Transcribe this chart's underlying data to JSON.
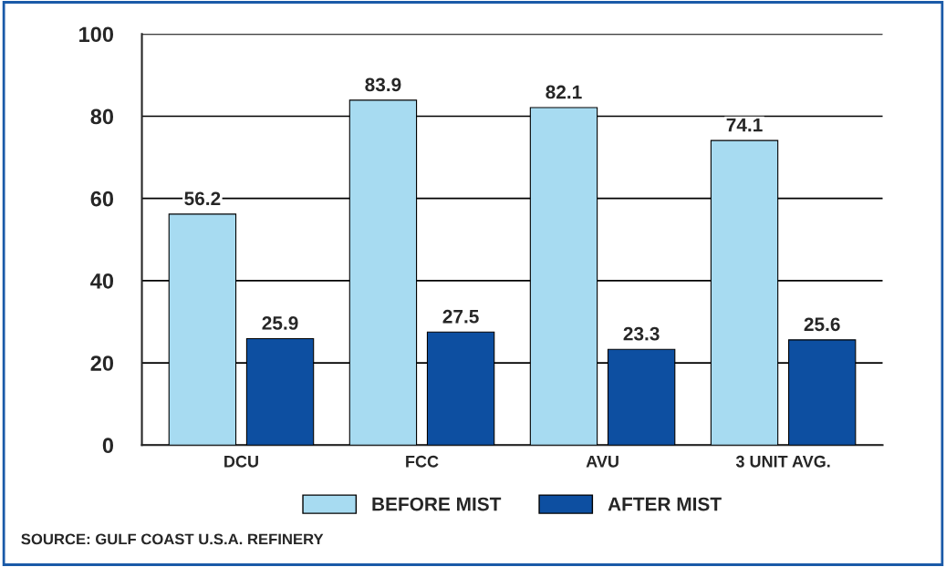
{
  "chart_data": {
    "type": "bar",
    "categories": [
      "DCU",
      "FCC",
      "AVU",
      "3 UNIT AVG."
    ],
    "series": [
      {
        "name": "BEFORE MIST",
        "color": "#a7dbf1",
        "values": [
          56.2,
          83.9,
          82.1,
          74.1
        ]
      },
      {
        "name": "AFTER MIST",
        "color": "#0d4fa1",
        "values": [
          25.9,
          27.5,
          23.3,
          25.6
        ]
      }
    ],
    "ylim": [
      0,
      100
    ],
    "yticks": [
      0,
      20,
      40,
      60,
      80,
      100
    ],
    "grid": "y",
    "legend": "bottom",
    "data_labels": true,
    "annotations": [
      "SOURCE: GULF COAST U.S.A. REFINERY"
    ]
  }
}
